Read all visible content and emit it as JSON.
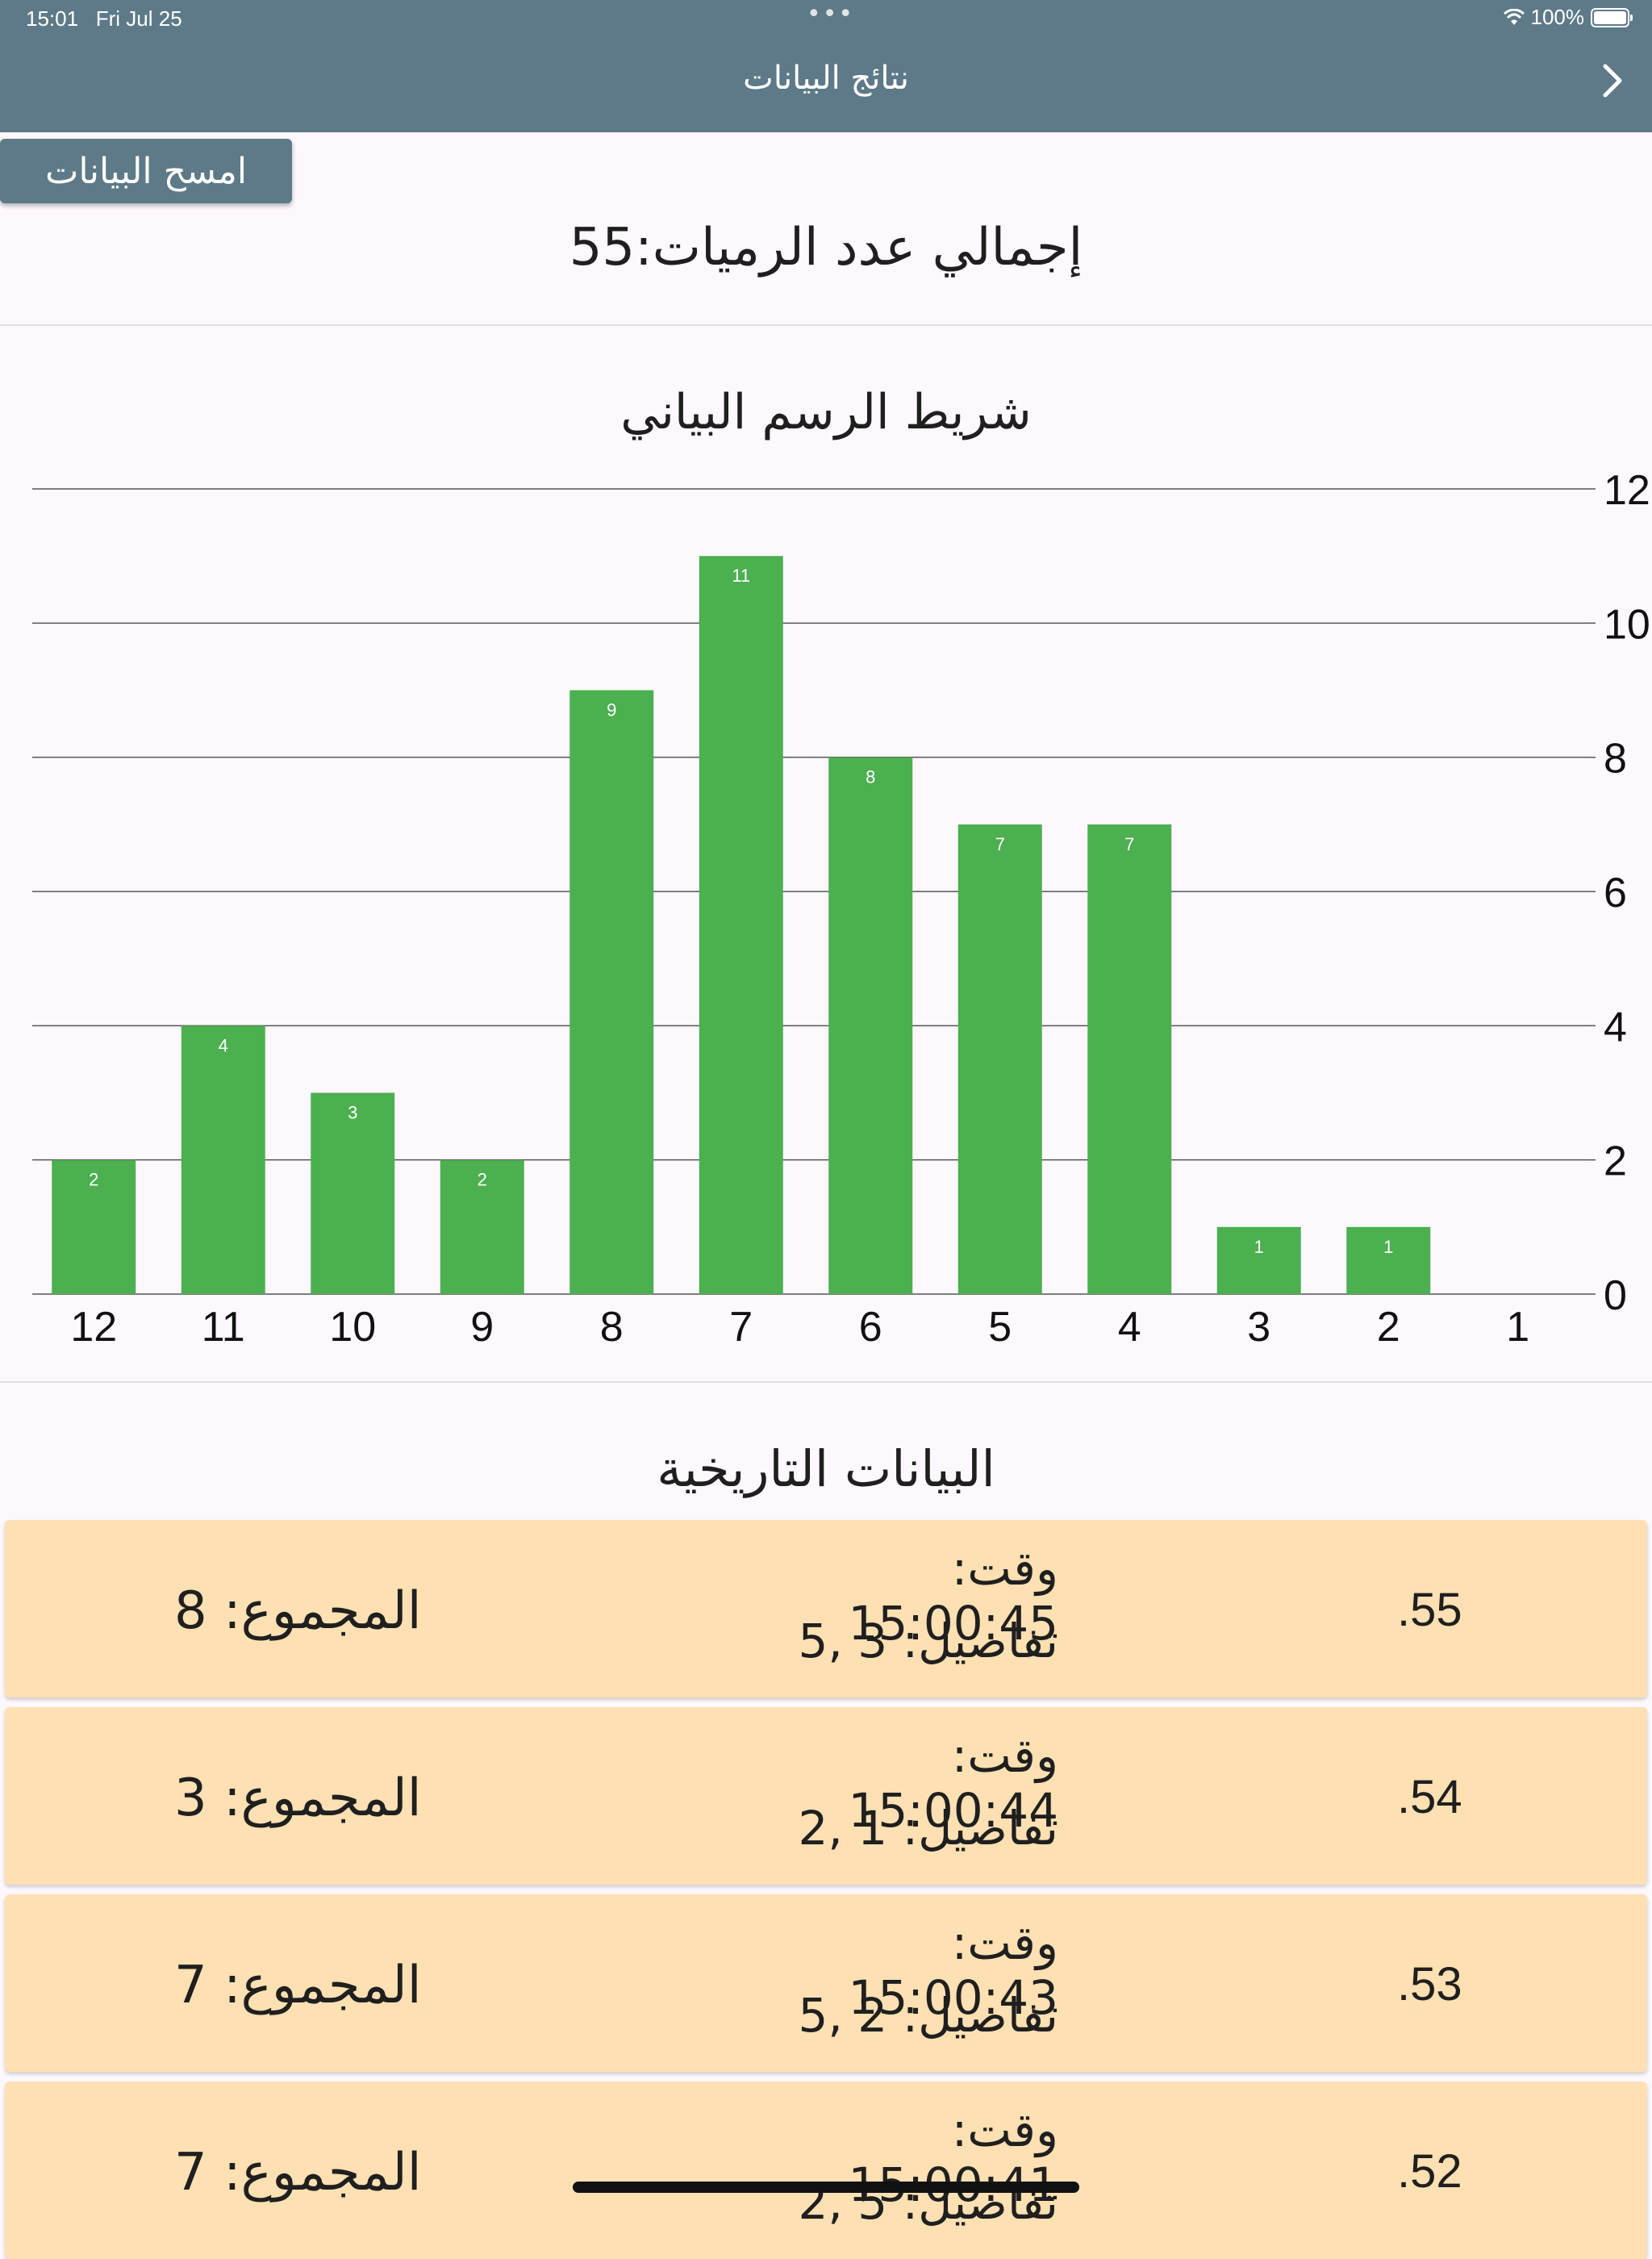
{
  "status_bar": {
    "time": "15:01",
    "date": "Fri Jul 25",
    "battery": "100%"
  },
  "header": {
    "title": "نتائج البيانات"
  },
  "clear_button": {
    "label": "امسح البيانات"
  },
  "total_rolls": {
    "label": "إجمالي عدد الرميات:",
    "value": "55"
  },
  "chart_data": {
    "type": "bar",
    "title": "شريط الرسم البياني",
    "categories": [
      "12",
      "11",
      "10",
      "9",
      "8",
      "7",
      "6",
      "5",
      "4",
      "3",
      "2",
      "1"
    ],
    "values": [
      2,
      4,
      3,
      2,
      9,
      11,
      8,
      7,
      7,
      1,
      1,
      0
    ],
    "y_ticks": [
      "0",
      "2",
      "4",
      "6",
      "8",
      "10",
      "12"
    ],
    "ylim": [
      0,
      12
    ],
    "y_axis_side": "right",
    "grid": true,
    "bar_color": "#4caf50"
  },
  "history": {
    "title": "البيانات التاريخية",
    "rows": [
      {
        "index": ".55",
        "time": "وقت: 15:00:45",
        "details": "تفاصيل: 3 ,5",
        "total": "المجموع: 8"
      },
      {
        "index": ".54",
        "time": "وقت: 15:00:44",
        "details": "تفاصيل: 1 ,2",
        "total": "المجموع: 3"
      },
      {
        "index": ".53",
        "time": "وقت: 15:00:43",
        "details": "تفاصيل: 2 ,5",
        "total": "المجموع: 7"
      },
      {
        "index": ".52",
        "time": "وقت: 15:00:41",
        "details": "تفاصيل: 5 ,2",
        "total": "المجموع: 7"
      }
    ]
  },
  "colors": {
    "header_bg": "#5e7a88",
    "row_bg": "#ffe0b2",
    "page_bg": "#fdf8fd"
  }
}
